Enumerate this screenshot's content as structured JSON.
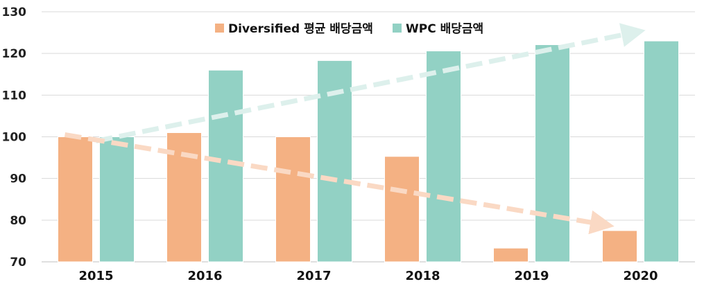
{
  "chart_data": {
    "type": "bar",
    "categories": [
      "2015",
      "2016",
      "2017",
      "2018",
      "2019",
      "2020"
    ],
    "series": [
      {
        "name": "Diversified 평균 배당금액",
        "color": "#F4B183",
        "values": [
          100,
          101,
          100,
          95.3,
          73.3,
          77.5
        ]
      },
      {
        "name": "WPC 배당금액",
        "color": "#92D1C4",
        "values": [
          100,
          116,
          118.3,
          120.6,
          122.1,
          123
        ]
      }
    ],
    "ylim": [
      70,
      130
    ],
    "yticks": [
      70,
      80,
      90,
      100,
      110,
      120,
      130
    ],
    "grid": true,
    "legend_position": "top-center",
    "trend_arrows": [
      {
        "series": "WPC 배당금액",
        "color": "#DDF0EC",
        "from": {
          "x": "2015",
          "y": 99
        },
        "to": {
          "x": "2020",
          "y": 125
        }
      },
      {
        "series": "Diversified 평균 배당금액",
        "color": "#FAD9C4",
        "from": {
          "x": "2015",
          "y": 100.5
        },
        "to": {
          "x": "2020",
          "y": 79
        }
      }
    ]
  }
}
